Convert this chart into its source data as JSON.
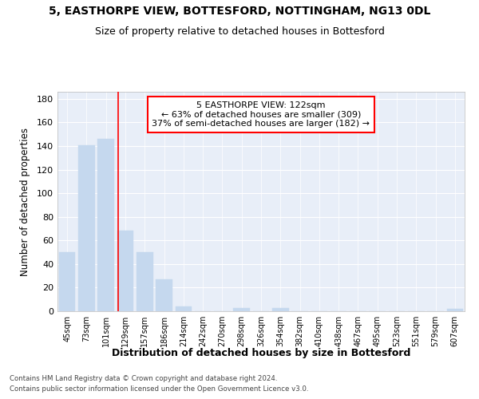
{
  "title": "5, EASTHORPE VIEW, BOTTESFORD, NOTTINGHAM, NG13 0DL",
  "subtitle": "Size of property relative to detached houses in Bottesford",
  "xlabel": "Distribution of detached houses by size in Bottesford",
  "ylabel": "Number of detached properties",
  "annotation_line1": "5 EASTHORPE VIEW: 122sqm",
  "annotation_line2": "← 63% of detached houses are smaller (309)",
  "annotation_line3": "37% of semi-detached houses are larger (182) →",
  "categories": [
    "45sqm",
    "73sqm",
    "101sqm",
    "129sqm",
    "157sqm",
    "186sqm",
    "214sqm",
    "242sqm",
    "270sqm",
    "298sqm",
    "326sqm",
    "354sqm",
    "382sqm",
    "410sqm",
    "438sqm",
    "467sqm",
    "495sqm",
    "523sqm",
    "551sqm",
    "579sqm",
    "607sqm"
  ],
  "values": [
    50,
    141,
    146,
    68,
    50,
    27,
    4,
    0,
    0,
    3,
    0,
    3,
    0,
    0,
    0,
    0,
    0,
    0,
    0,
    0,
    2
  ],
  "bar_color": "#c5d8ee",
  "red_line_x": 2.62,
  "background_color": "#ffffff",
  "plot_bg_color": "#e8eef8",
  "footer_line1": "Contains HM Land Registry data © Crown copyright and database right 2024.",
  "footer_line2": "Contains public sector information licensed under the Open Government Licence v3.0.",
  "ylim": [
    0,
    186
  ],
  "yticks": [
    0,
    20,
    40,
    60,
    80,
    100,
    120,
    140,
    160,
    180
  ]
}
